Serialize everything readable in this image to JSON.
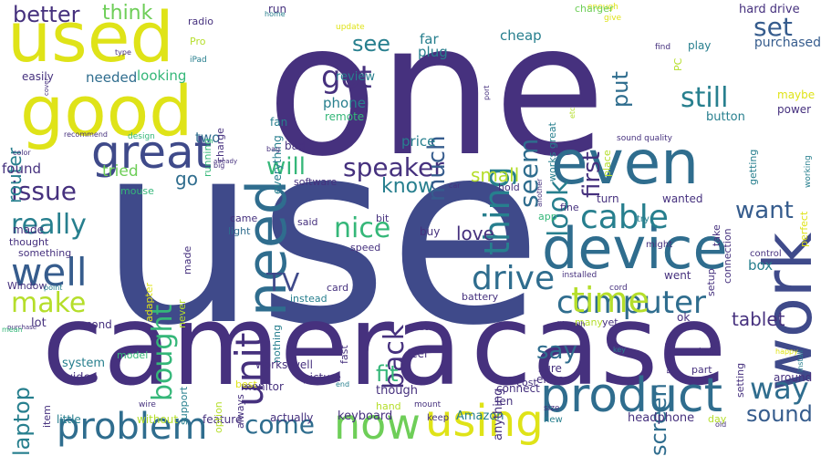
{
  "palette": {
    "purple": "#46317e",
    "indigo": "#3f4a8a",
    "blue": "#365c8d",
    "teal_blue": "#2f6d8e",
    "teal": "#277f8e",
    "sea": "#1f9a8a",
    "green": "#35b779",
    "lime_green": "#6ece58",
    "yellow_green": "#b5de2b",
    "yellow": "#dfe318"
  },
  "words": [
    "one",
    "use",
    "camera",
    "case",
    "used",
    "good",
    "need",
    "even",
    "work",
    "device",
    "great",
    "product",
    "problem",
    "using",
    "now",
    "computer",
    "cable",
    "time",
    "unit",
    "drive",
    "well",
    "issue",
    "make",
    "really",
    "got",
    "thing",
    "speaker",
    "bought",
    "back",
    "nice",
    "will",
    "still",
    "set",
    "look",
    "seem",
    "first",
    "put",
    "laptop",
    "way",
    "sound",
    "say",
    "screen",
    "come",
    "fit",
    "want",
    "know",
    "see",
    "much",
    "better",
    "think",
    "TV",
    "love",
    "tablet",
    "small",
    "router",
    "purchased",
    "hard drive",
    "box",
    "go",
    "tried",
    "found",
    "two",
    "needed",
    "looking",
    "review",
    "phone",
    "far",
    "plug",
    "cheap",
    "works great",
    "everything",
    "fan",
    "run",
    "price",
    "remote",
    "bad",
    "software",
    "mouse",
    "app",
    "fine",
    "light",
    "card",
    "instead",
    "battery",
    "lot",
    "second",
    "video",
    "system",
    "item",
    "little",
    "without",
    "feature",
    "actually",
    "keyboard",
    "Amazon",
    "headphone",
    "day",
    "new",
    "keep",
    "though",
    "len",
    "either",
    "sure",
    "anything",
    "picture",
    "model",
    "support",
    "option",
    "monitor",
    "always",
    "feel",
    "fast",
    "part",
    "setting",
    "around",
    "button",
    "power",
    "maybe",
    "getting",
    "perfect",
    "working",
    "connection",
    "take",
    "setup",
    "wanted",
    "turn",
    "place",
    "hold",
    "buy",
    "bit",
    "said",
    "speed",
    "came",
    "made",
    "made",
    "thought",
    "something",
    "Window",
    "never",
    "adapter",
    "nothing",
    "installed",
    "cord",
    "went",
    "ok",
    "many",
    "yet",
    "probably",
    "might",
    "control",
    "enough",
    "charger",
    "give",
    "play",
    "PC",
    "find",
    "Pro",
    "iPad",
    "radio",
    "type",
    "home",
    "update",
    "allow",
    "port",
    "color",
    "recommend",
    "design",
    "running",
    "charge",
    "easily",
    "cover",
    "purchase",
    "mean",
    "point",
    "already",
    "big",
    "bag",
    "car",
    "another",
    "although",
    "side",
    "mount",
    "hand",
    "size",
    "cost",
    "wire",
    "end",
    "help",
    "key",
    "happy",
    "old",
    "install",
    "connect",
    "etc",
    "sound quality",
    "try",
    "works well",
    "best",
    "may"
  ]
}
